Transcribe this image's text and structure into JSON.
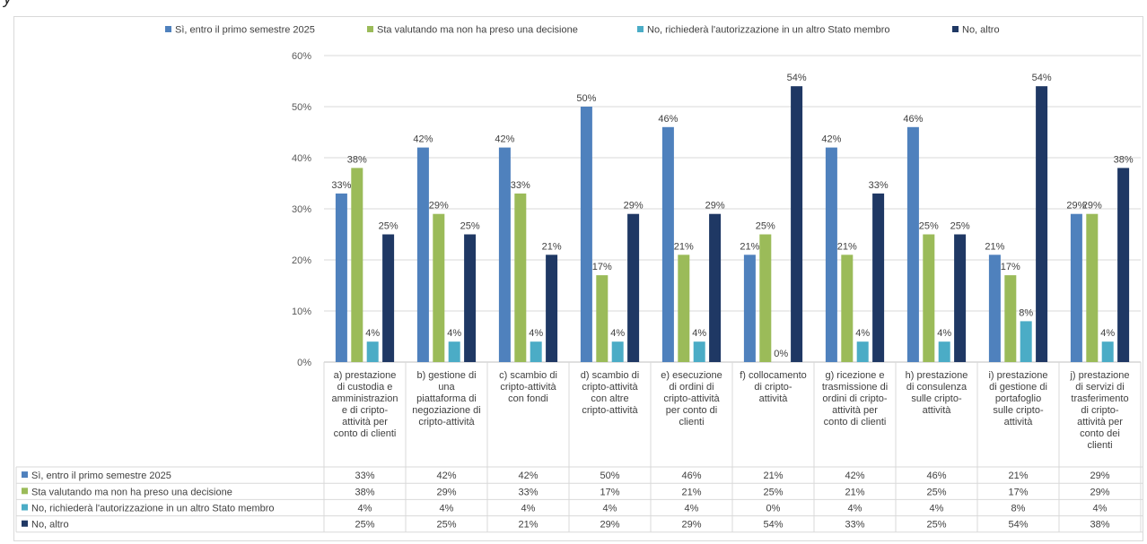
{
  "colors": {
    "series": [
      "#4f81bd",
      "#9bbb59",
      "#4bacc6",
      "#1f3864"
    ],
    "grid": "#d9d9d9",
    "axis": "#bfbfbf"
  },
  "chart_data": {
    "type": "bar",
    "title": "",
    "xlabel": "",
    "ylabel": "",
    "ylim": [
      0,
      60
    ],
    "yticks": [
      "0%",
      "10%",
      "20%",
      "30%",
      "40%",
      "50%",
      "60%"
    ],
    "grid": true,
    "legend_position": "top",
    "data_table": true,
    "categories": [
      "a) prestazione di custodia e amministrazione e di cripto-attività per conto di clienti",
      "b) gestione di una piattaforma di negoziazione di cripto-attività",
      "c) scambio di cripto-attività con fondi",
      "d) scambio di cripto-attività con altre cripto-attività",
      "e) esecuzione di ordini di cripto-attività per conto di clienti",
      "f) collocamento di cripto-attività",
      "g) ricezione e trasmissione di ordini di cripto-attività per conto di clienti",
      "h) prestazione di consulenza sulle cripto-attività",
      "i) prestazione di gestione di portafoglio sulle cripto-attività",
      "j) prestazione di servizi di trasferimento di cripto-attività per conto dei clienti"
    ],
    "category_lines": [
      [
        "a) prestazione",
        "di custodia e",
        "amministrazion",
        "e di cripto-",
        "attività per",
        "conto di clienti"
      ],
      [
        "b) gestione di",
        "una",
        "piattaforma di",
        "negoziazione di",
        "cripto-attività"
      ],
      [
        "c) scambio di",
        "cripto-attività",
        "con fondi"
      ],
      [
        "d) scambio di",
        "cripto-attività",
        "con altre",
        "cripto-attività"
      ],
      [
        "e) esecuzione",
        "di ordini di",
        "cripto-attività",
        "per conto di",
        "clienti"
      ],
      [
        "f) collocamento",
        "di cripto-",
        "attività"
      ],
      [
        "g) ricezione e",
        "trasmissione di",
        "ordini di cripto-",
        "attività per",
        "conto di clienti"
      ],
      [
        "h) prestazione",
        "di consulenza",
        "sulle cripto-",
        "attività"
      ],
      [
        "i) prestazione",
        "di gestione di",
        "portafoglio",
        "sulle cripto-",
        "attività"
      ],
      [
        "j) prestazione",
        "di servizi di",
        "trasferimento",
        "di cripto-",
        "attività per",
        "conto dei",
        "clienti"
      ]
    ],
    "series": [
      {
        "name": "Sì, entro il primo semestre 2025",
        "values": [
          33,
          42,
          42,
          50,
          46,
          21,
          42,
          46,
          21,
          29
        ]
      },
      {
        "name": "Sta valutando ma non ha preso una decisione",
        "values": [
          38,
          29,
          33,
          17,
          21,
          25,
          21,
          25,
          17,
          29
        ]
      },
      {
        "name": "No, richiederà l'autorizzazione in un altro Stato membro",
        "values": [
          4,
          4,
          4,
          4,
          4,
          0,
          4,
          4,
          8,
          4
        ]
      },
      {
        "name": "No, altro",
        "values": [
          25,
          25,
          21,
          29,
          29,
          54,
          33,
          25,
          54,
          38
        ]
      }
    ],
    "value_suffix": "%"
  }
}
